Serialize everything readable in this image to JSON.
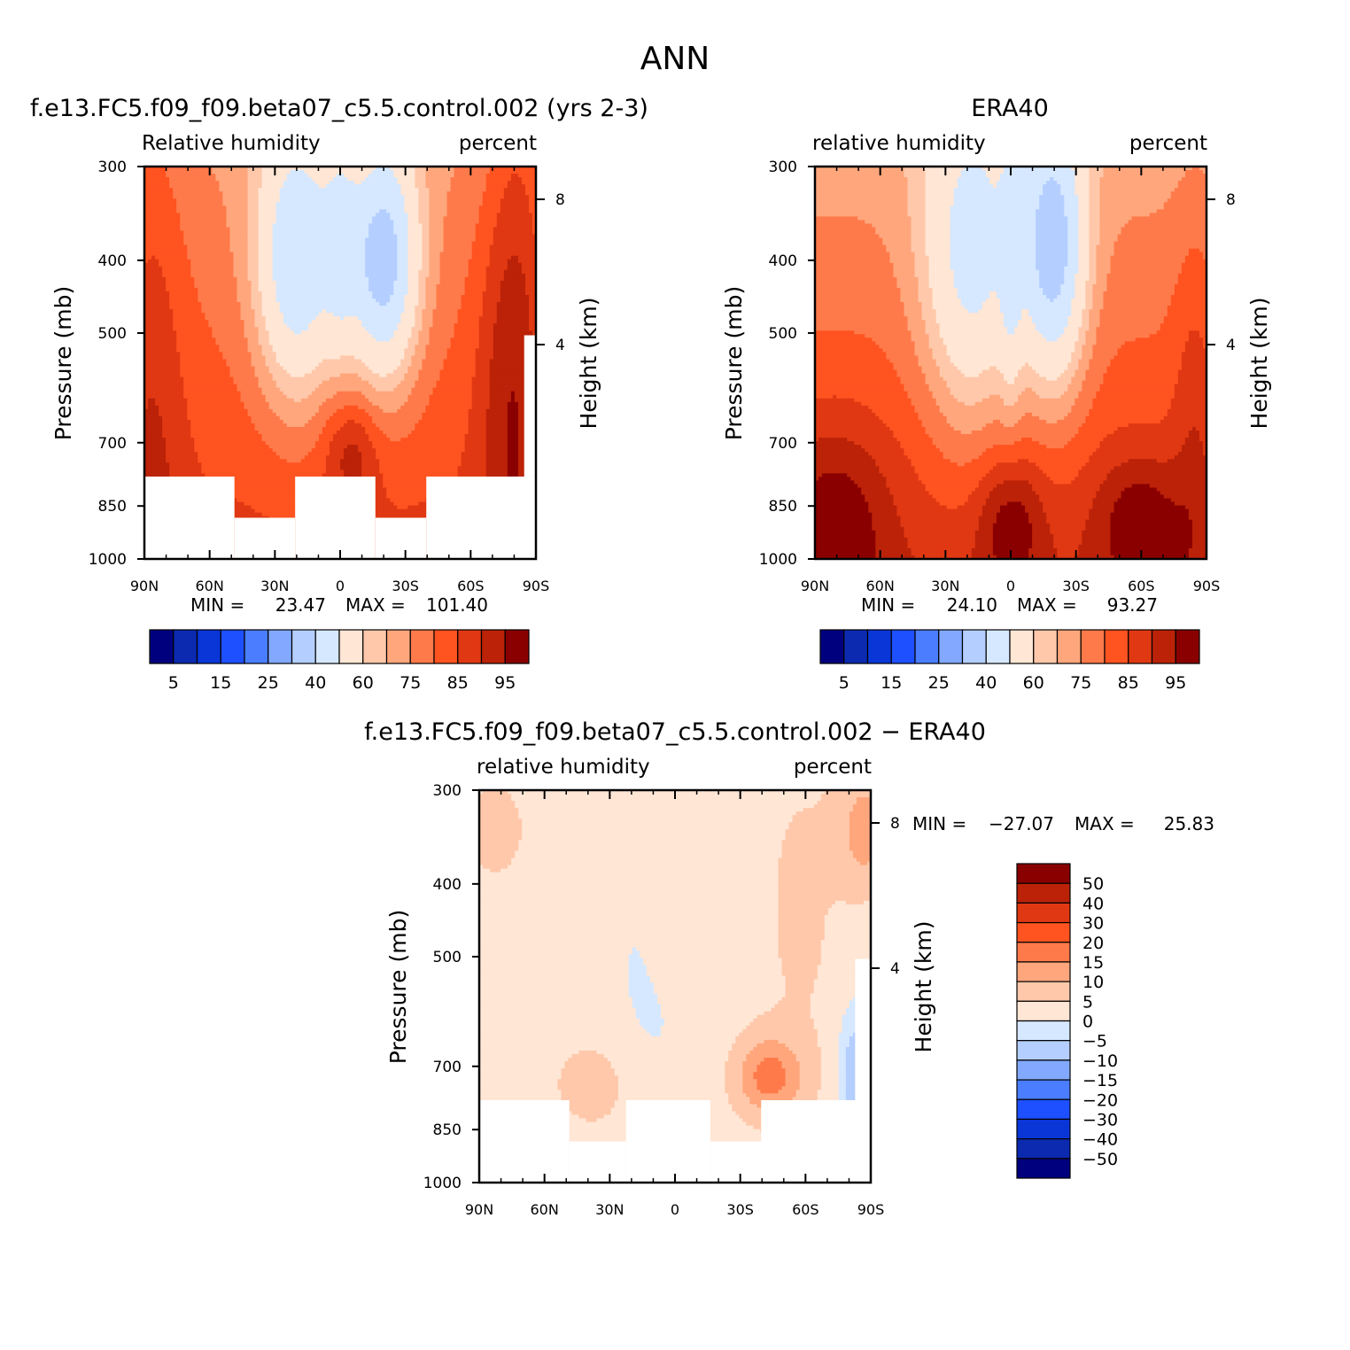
{
  "title": "ANN",
  "chart_data": [
    {
      "type": "heatmap",
      "id": "model",
      "title": "f.e13.FC5.f09_f09.beta07_c5.5.control.002 (yrs 2-3)",
      "subtitle_left": "Relative humidity",
      "subtitle_right": "percent",
      "ylabel": "Pressure (mb)",
      "ylabel_right": "Height (km)",
      "x_ticks": [
        "90N",
        "60N",
        "30N",
        "0",
        "30S",
        "60S",
        "90S"
      ],
      "y_ticks": [
        "300",
        "400",
        "500",
        "700",
        "850",
        "1000"
      ],
      "y_ticks_right": [
        "8",
        "4"
      ],
      "min_label": "MIN =",
      "min_value": "23.47",
      "max_label": "MAX =",
      "max_value": "101.40",
      "colorbar_labels": [
        "5",
        "15",
        "25",
        "40",
        "60",
        "75",
        "85",
        "95"
      ]
    },
    {
      "type": "heatmap",
      "id": "obs",
      "title": "ERA40",
      "subtitle_left": "relative humidity",
      "subtitle_right": "percent",
      "ylabel": "Pressure (mb)",
      "ylabel_right": "Height (km)",
      "x_ticks": [
        "90N",
        "60N",
        "30N",
        "0",
        "30S",
        "60S",
        "90S"
      ],
      "y_ticks": [
        "300",
        "400",
        "500",
        "700",
        "850",
        "1000"
      ],
      "y_ticks_right": [
        "8",
        "4"
      ],
      "min_label": "MIN =",
      "min_value": "24.10",
      "max_label": "MAX =",
      "max_value": "93.27",
      "colorbar_labels": [
        "5",
        "15",
        "25",
        "40",
        "60",
        "75",
        "85",
        "95"
      ]
    },
    {
      "type": "heatmap",
      "id": "diff",
      "title": "f.e13.FC5.f09_f09.beta07_c5.5.control.002 − ERA40",
      "subtitle_left": "relative humidity",
      "subtitle_right": "percent",
      "ylabel": "Pressure (mb)",
      "ylabel_right": "Height (km)",
      "x_ticks": [
        "90N",
        "60N",
        "30N",
        "0",
        "30S",
        "60S",
        "90S"
      ],
      "y_ticks": [
        "300",
        "400",
        "500",
        "700",
        "850",
        "1000"
      ],
      "y_ticks_right": [
        "8",
        "4"
      ],
      "min_label": "MIN =",
      "min_value": "−27.07",
      "max_label": "MAX =",
      "max_value": "25.83",
      "colorbar_labels": [
        "50",
        "40",
        "30",
        "20",
        "15",
        "10",
        "5",
        "0",
        "−5",
        "−10",
        "−15",
        "−20",
        "−30",
        "−40",
        "−50"
      ]
    }
  ],
  "palette": [
    "#00007f",
    "#0b2ab0",
    "#0a36d8",
    "#1e50ff",
    "#4a7dff",
    "#82a9ff",
    "#b4ceff",
    "#d5e8ff",
    "#ffe6d5",
    "#ffc8aa",
    "#ffa67c",
    "#ff7a4a",
    "#ff5320",
    "#e03812",
    "#bb2208",
    "#8a0000"
  ]
}
